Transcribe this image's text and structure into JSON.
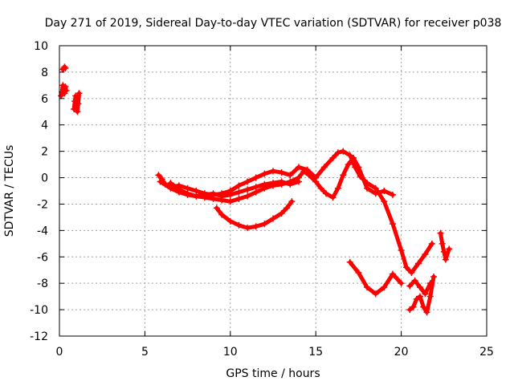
{
  "chart_data": {
    "type": "scatter",
    "title": "Day 271 of 2019, Sidereal Day-to-day VTEC variation (SDTVAR) for receiver p038",
    "xlabel": "GPS time / hours",
    "ylabel": "SDTVAR / TECUs",
    "xlim": [
      0,
      25
    ],
    "ylim": [
      -12,
      10
    ],
    "xticks": [
      "0",
      "5",
      "10",
      "15",
      "20",
      "25"
    ],
    "yticks": [
      "10",
      "8",
      "6",
      "4",
      "2",
      "0",
      "-2",
      "-4",
      "-6",
      "-8",
      "-10",
      "-12"
    ],
    "grid": true,
    "marker": "plus",
    "color": "#ff0000",
    "series": [
      {
        "x": [
          0.1,
          0.15,
          0.2,
          0.25,
          0.3,
          0.35,
          0.4
        ],
        "y": [
          6.2,
          6.5,
          7.0,
          6.8,
          6.4,
          6.9,
          6.6
        ]
      },
      {
        "x": [
          0.2,
          0.25,
          0.3,
          0.35
        ],
        "y": [
          8.2,
          8.3,
          8.4,
          8.3
        ]
      },
      {
        "x": [
          0.85,
          0.9,
          0.95,
          1.0,
          1.05,
          1.1,
          1.15
        ],
        "y": [
          5.2,
          5.8,
          6.2,
          5.5,
          5.0,
          5.6,
          6.4
        ]
      },
      {
        "x": [
          5.8,
          6.0,
          6.2,
          6.5,
          7.0,
          7.5,
          8.0,
          8.5,
          9.0,
          9.5,
          10.0,
          10.5,
          11.0,
          11.5,
          12.0,
          12.5,
          13.0,
          13.5,
          14.0,
          14.5,
          15.0,
          15.5,
          16.0,
          16.3,
          16.6,
          17.0,
          17.3,
          17.6,
          18.0,
          18.5,
          19.0,
          19.5,
          20.0,
          20.3,
          20.6,
          21.0,
          21.4,
          21.8
        ],
        "y": [
          0.2,
          -0.1,
          -0.5,
          -0.7,
          -0.6,
          -0.8,
          -1.0,
          -1.2,
          -1.3,
          -1.2,
          -1.0,
          -0.6,
          -0.3,
          0.0,
          0.3,
          0.5,
          0.4,
          0.2,
          0.8,
          0.6,
          0.0,
          0.8,
          1.5,
          1.9,
          2.0,
          1.7,
          0.8,
          0.1,
          -0.4,
          -0.8,
          -1.8,
          -3.5,
          -5.5,
          -6.8,
          -7.2,
          -6.5,
          -5.8,
          -5.0
        ]
      },
      {
        "x": [
          5.9,
          6.5,
          7.0,
          7.5,
          8.0,
          8.5,
          9.0,
          9.5,
          10.0,
          10.5,
          11.0,
          11.5,
          12.0,
          12.5,
          13.0,
          13.5,
          14.0,
          14.3,
          14.6,
          15.0,
          15.3,
          15.6,
          16.0,
          16.3,
          16.6,
          16.9,
          17.2,
          17.5,
          18.0,
          18.5,
          19.0,
          19.5
        ],
        "y": [
          -0.3,
          -0.8,
          -1.1,
          -1.3,
          -1.4,
          -1.5,
          -1.6,
          -1.7,
          -1.8,
          -1.6,
          -1.4,
          -1.1,
          -0.8,
          -0.6,
          -0.5,
          -0.3,
          0.0,
          0.5,
          0.2,
          -0.3,
          -0.8,
          -1.2,
          -1.5,
          -0.8,
          0.2,
          1.0,
          1.5,
          0.8,
          -0.8,
          -1.2,
          -1.0,
          -1.3
        ]
      },
      {
        "x": [
          6.5,
          7.0,
          7.5,
          8.0,
          8.5,
          9.0,
          9.5,
          10.0,
          10.5,
          11.0,
          11.5,
          12.0,
          12.5,
          13.0,
          13.5,
          14.0
        ],
        "y": [
          -0.4,
          -0.9,
          -1.2,
          -1.4,
          -1.3,
          -1.2,
          -1.4,
          -1.3,
          -1.1,
          -0.9,
          -0.7,
          -0.5,
          -0.4,
          -0.3,
          -0.5,
          -0.3
        ]
      },
      {
        "x": [
          9.2,
          9.5,
          10.0,
          10.5,
          11.0,
          11.5,
          12.0,
          12.5,
          13.0,
          13.3,
          13.6
        ],
        "y": [
          -2.3,
          -2.8,
          -3.3,
          -3.6,
          -3.8,
          -3.7,
          -3.5,
          -3.1,
          -2.7,
          -2.3,
          -1.8
        ]
      },
      {
        "x": [
          17.0,
          17.5,
          18.0,
          18.5,
          19.0,
          19.5,
          20.0
        ],
        "y": [
          -6.4,
          -7.2,
          -8.3,
          -8.8,
          -8.3,
          -7.3,
          -8.0
        ]
      },
      {
        "x": [
          20.5,
          20.7,
          20.9,
          21.1,
          21.3,
          21.5,
          21.7,
          21.9
        ],
        "y": [
          -10.0,
          -9.8,
          -9.2,
          -9.0,
          -9.8,
          -10.2,
          -9.0,
          -7.5
        ]
      },
      {
        "x": [
          20.5,
          20.8,
          21.1,
          21.4,
          21.7
        ],
        "y": [
          -8.2,
          -7.8,
          -8.3,
          -8.8,
          -8.0
        ]
      },
      {
        "x": [
          22.3,
          22.4,
          22.5,
          22.6,
          22.8
        ],
        "y": [
          -4.2,
          -5.0,
          -5.6,
          -6.2,
          -5.4
        ]
      }
    ]
  }
}
